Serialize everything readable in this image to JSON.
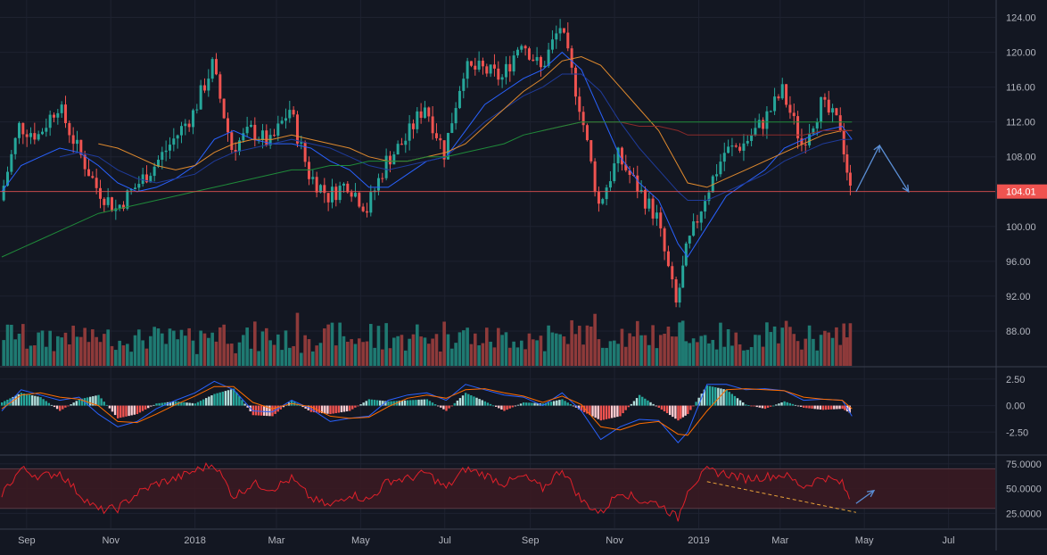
{
  "colors": {
    "background": "#131722",
    "grid": "#1e2230",
    "axis_text": "#b2b5be",
    "up": "#26a69a",
    "down": "#ef5350",
    "volume_up": "#1f7a72",
    "volume_down": "#8e3a3a",
    "sma_fast": "#2962ff",
    "sma_mid": "#1f3b9a",
    "ma_orange": "#e08a2e",
    "ma_red": "#8b2a2a",
    "ma_green": "#1f8a3a",
    "rsi_line": "#e0202a",
    "rsi_band": "#3a1a22",
    "trend_dash": "#e8a23a",
    "arrow": "#5b8fd6",
    "price_line": "#ef5350",
    "badge": "#ef5350",
    "separator": "#3a3f4e"
  },
  "chart_data": {
    "type": "line",
    "title": "",
    "time_axis": {
      "labels": [
        "Sep",
        "Nov",
        "2018",
        "Mar",
        "May",
        "Jul",
        "Sep",
        "Nov",
        "2019",
        "Mar",
        "May",
        "Jul"
      ],
      "range": [
        "2017-08-14",
        "2019-07-31"
      ]
    },
    "last_price": "104.01",
    "panels": [
      {
        "name": "price",
        "ylim": [
          84,
          126
        ],
        "y_ticks": [
          "124.00",
          "120.00",
          "116.00",
          "112.00",
          "108.00",
          "104.00",
          "100.00",
          "96.00",
          "92.00",
          "88.00"
        ],
        "y_tick_values": [
          124,
          120,
          116,
          112,
          108,
          104,
          100,
          96,
          92,
          88
        ],
        "price_series": {
          "dates": [
            "2017-08-14",
            "2017-08-28",
            "2017-09-11",
            "2017-09-25",
            "2017-10-09",
            "2017-10-23",
            "2017-11-06",
            "2017-11-20",
            "2017-12-04",
            "2017-12-18",
            "2018-01-01",
            "2018-01-15",
            "2018-01-29",
            "2018-02-12",
            "2018-02-26",
            "2018-03-12",
            "2018-03-26",
            "2018-04-09",
            "2018-04-23",
            "2018-05-07",
            "2018-05-21",
            "2018-06-04",
            "2018-06-18",
            "2018-07-02",
            "2018-07-16",
            "2018-07-30",
            "2018-08-13",
            "2018-08-27",
            "2018-09-10",
            "2018-09-24",
            "2018-10-08",
            "2018-10-22",
            "2018-11-05",
            "2018-11-19",
            "2018-12-03",
            "2018-12-17",
            "2018-12-24",
            "2019-01-07",
            "2019-01-21",
            "2019-02-04",
            "2019-02-18",
            "2019-03-04",
            "2019-03-18",
            "2019-04-01",
            "2019-04-15",
            "2019-04-22"
          ],
          "close": [
            103.0,
            111.5,
            110.5,
            114.0,
            109.0,
            104.5,
            102.0,
            104.5,
            107.0,
            110.0,
            113.0,
            118.5,
            109.0,
            111.0,
            109.5,
            113.5,
            106.0,
            103.5,
            105.0,
            102.0,
            107.5,
            110.0,
            114.0,
            108.5,
            118.0,
            118.0,
            117.0,
            121.5,
            118.0,
            123.0,
            114.0,
            102.5,
            108.0,
            104.5,
            101.0,
            91.0,
            97.0,
            103.5,
            108.5,
            109.5,
            112.0,
            115.5,
            109.5,
            114.0,
            111.5,
            104.01
          ]
        },
        "moving_averages": [
          {
            "color": "#2962ff",
            "values": [
              104.0,
              107.0,
              108.0,
              109.0,
              108.5,
              107.0,
              105.0,
              104.0,
              104.5,
              105.5,
              107.0,
              110.0,
              111.0,
              110.0,
              109.5,
              109.5,
              109.0,
              107.5,
              106.5,
              104.5,
              104.5,
              106.0,
              107.5,
              108.0,
              111.0,
              114.0,
              115.5,
              117.0,
              118.0,
              120.0,
              118.0,
              113.0,
              108.0,
              105.0,
              103.0,
              98.0,
              96.5,
              100.0,
              103.5,
              105.0,
              106.5,
              109.0,
              110.0,
              111.0,
              111.5,
              110.0
            ]
          },
          {
            "color": "#1f3b9a",
            "values": [
              null,
              null,
              null,
              108.0,
              108.5,
              108.0,
              106.5,
              105.5,
              105.0,
              105.5,
              106.0,
              107.5,
              108.5,
              109.0,
              109.5,
              110.0,
              109.5,
              109.0,
              108.0,
              107.0,
              106.5,
              107.0,
              107.5,
              108.0,
              110.0,
              112.0,
              113.5,
              115.0,
              116.0,
              117.5,
              117.5,
              115.5,
              112.0,
              109.0,
              106.5,
              104.0,
              103.0,
              103.0,
              104.0,
              105.0,
              106.0,
              107.5,
              108.5,
              109.5,
              110.0,
              110.0
            ]
          },
          {
            "color": "#e08a2e",
            "values": [
              null,
              null,
              null,
              null,
              null,
              109.5,
              109.0,
              108.0,
              107.0,
              106.5,
              107.0,
              108.5,
              109.5,
              110.0,
              110.0,
              110.5,
              110.0,
              109.5,
              109.0,
              108.0,
              107.5,
              107.5,
              108.0,
              108.5,
              109.5,
              111.5,
              113.5,
              115.5,
              117.0,
              119.0,
              119.5,
              118.5,
              116.0,
              113.5,
              111.0,
              107.0,
              105.0,
              104.5,
              105.5,
              106.5,
              107.5,
              108.5,
              109.5,
              110.5,
              111.0,
              111.0
            ]
          },
          {
            "color": "#8b2a2a",
            "values": [
              null,
              null,
              null,
              null,
              null,
              null,
              null,
              null,
              null,
              null,
              null,
              null,
              null,
              null,
              null,
              null,
              null,
              null,
              null,
              null,
              null,
              null,
              null,
              null,
              null,
              null,
              null,
              null,
              111.0,
              111.5,
              112.0,
              112.0,
              112.0,
              111.5,
              111.5,
              111.0,
              110.5,
              110.5,
              110.5,
              110.5,
              110.5,
              110.5,
              110.5,
              111.0,
              111.0,
              111.0
            ]
          },
          {
            "color": "#1f8a3a",
            "values": [
              96.5,
              97.5,
              98.5,
              99.5,
              100.5,
              101.5,
              102.0,
              102.5,
              103.0,
              103.5,
              104.0,
              104.5,
              105.0,
              105.5,
              106.0,
              106.5,
              106.5,
              107.0,
              107.0,
              107.5,
              107.5,
              107.5,
              108.0,
              108.0,
              108.5,
              109.0,
              109.5,
              110.5,
              111.0,
              111.5,
              112.0,
              112.0,
              112.0,
              112.0,
              112.0,
              112.0,
              112.0,
              112.0,
              112.0,
              112.0,
              112.0,
              112.0,
              112.0,
              112.0,
              112.0,
              112.0
            ]
          }
        ],
        "horizontal_line": 104.01,
        "projection_arrows": [
          {
            "from": [
              "2019-04-25",
              104.0
            ],
            "to": [
              "2019-05-12",
              109.3
            ]
          },
          {
            "from": [
              "2019-05-12",
              109.3
            ],
            "to": [
              "2019-06-02",
              104.0
            ]
          }
        ]
      },
      {
        "name": "macd",
        "ylim": [
          -4.5,
          3.5
        ],
        "y_ticks": [
          "2.50",
          "0.00",
          "-2.50"
        ],
        "y_tick_values": [
          2.5,
          0.0,
          -2.5
        ],
        "histogram": [
          0.3,
          1.2,
          0.8,
          -0.5,
          0.6,
          1.0,
          -1.2,
          -0.8,
          0.2,
          0.4,
          0.2,
          1.1,
          1.6,
          -0.9,
          -1.0,
          0.5,
          -0.6,
          -0.8,
          -0.5,
          0.6,
          0.4,
          0.5,
          0.6,
          -0.5,
          1.2,
          0.4,
          -0.5,
          0.3,
          0.2,
          0.6,
          -0.5,
          -1.4,
          -1.0,
          1.0,
          -0.2,
          -1.4,
          -0.8,
          1.9,
          1.5,
          0.1,
          -0.3,
          0.4,
          -0.2,
          -0.4,
          -0.3,
          -0.8
        ],
        "macd_line": [
          -0.5,
          1.5,
          1.0,
          0.5,
          0.8,
          -0.8,
          -2.0,
          -1.5,
          -0.3,
          0.5,
          1.2,
          2.3,
          1.5,
          -0.5,
          -0.6,
          0.5,
          -0.3,
          -1.5,
          -1.2,
          -1.0,
          0.5,
          1.0,
          1.2,
          0.5,
          2.0,
          1.5,
          1.0,
          0.8,
          0.0,
          1.2,
          -0.5,
          -3.2,
          -2.0,
          -1.3,
          -1.4,
          -3.5,
          -2.5,
          2.0,
          2.0,
          1.5,
          1.6,
          1.4,
          0.5,
          0.6,
          0.5,
          -1.0
        ],
        "signal_line": [
          -0.3,
          1.0,
          1.2,
          0.8,
          0.6,
          0.0,
          -1.5,
          -1.6,
          -0.8,
          0.1,
          0.9,
          1.8,
          1.8,
          0.3,
          -0.3,
          0.2,
          -0.1,
          -1.0,
          -1.2,
          -1.1,
          -0.1,
          0.7,
          1.0,
          0.7,
          1.5,
          1.6,
          1.2,
          0.9,
          0.3,
          0.9,
          0.1,
          -2.0,
          -2.3,
          -1.7,
          -1.5,
          -2.7,
          -2.8,
          -0.5,
          1.5,
          1.6,
          1.5,
          1.4,
          0.8,
          0.6,
          0.5,
          -0.3
        ]
      },
      {
        "name": "rsi",
        "ylim": [
          10,
          82
        ],
        "y_ticks": [
          "75.0000",
          "50.0000",
          "25.0000"
        ],
        "y_tick_values": [
          75,
          50,
          25
        ],
        "band": [
          30,
          70
        ],
        "rsi": [
          45,
          70,
          62,
          66,
          45,
          28,
          30,
          45,
          55,
          60,
          68,
          75,
          42,
          55,
          50,
          60,
          40,
          32,
          45,
          38,
          58,
          60,
          66,
          50,
          70,
          64,
          55,
          62,
          50,
          70,
          38,
          25,
          48,
          38,
          35,
          20,
          50,
          68,
          65,
          60,
          62,
          64,
          52,
          62,
          55,
          35
        ],
        "trend_line": {
          "from": [
            "2019-01-07",
            57.0
          ],
          "to": [
            "2019-04-25",
            26.0
          ]
        },
        "projection_arrow": {
          "from": [
            "2019-04-25",
            35.0
          ],
          "to": [
            "2019-05-08",
            48.0
          ]
        }
      }
    ]
  }
}
